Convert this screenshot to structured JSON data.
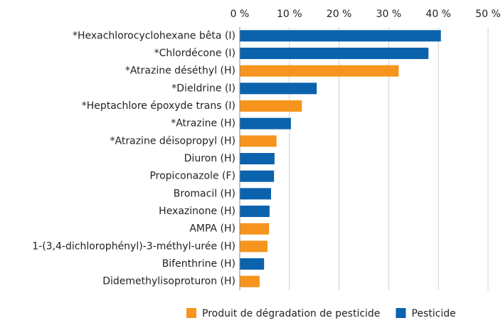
{
  "chart_data": {
    "type": "barh",
    "categories": [
      "*Hexachlorocyclohexane bêta (I)",
      "*Chlordécone (I)",
      "*Atrazine déséthyl (H)",
      "*Dieldrine (I)",
      "*Heptachlore époxyde trans (I)",
      "*Atrazine (H)",
      "*Atrazine déisopropyl (H)",
      "Diuron (H)",
      "Propiconazole (F)",
      "Bromacil (H)",
      "Hexazinone (H)",
      "AMPA (H)",
      "1-(3,4-dichlorophényl)-3-méthyl-urée (H)",
      "Bifenthrine (H)",
      "Didemethylisoproturon (H)"
    ],
    "series": [
      {
        "name": "Produit de dégradation de pesticide",
        "color": "#f7941d",
        "values": [
          null,
          null,
          32,
          null,
          12.5,
          null,
          7.4,
          null,
          null,
          null,
          null,
          5.9,
          5.6,
          null,
          4.0
        ]
      },
      {
        "name": "Pesticide",
        "color": "#0b62ad",
        "values": [
          40.5,
          38,
          null,
          15.5,
          null,
          10.3,
          null,
          7.0,
          6.9,
          6.3,
          6.0,
          null,
          null,
          4.9,
          null
        ]
      }
    ],
    "xlim": [
      0,
      50
    ],
    "xticks": [
      {
        "value": 0,
        "label": "0 %"
      },
      {
        "value": 10,
        "label": "10 %"
      },
      {
        "value": 20,
        "label": "20 %"
      },
      {
        "value": 30,
        "label": "30 %"
      },
      {
        "value": 40,
        "label": "40 %"
      },
      {
        "value": 50,
        "label": "50 %"
      }
    ],
    "grid": true,
    "legend": "bottom"
  }
}
